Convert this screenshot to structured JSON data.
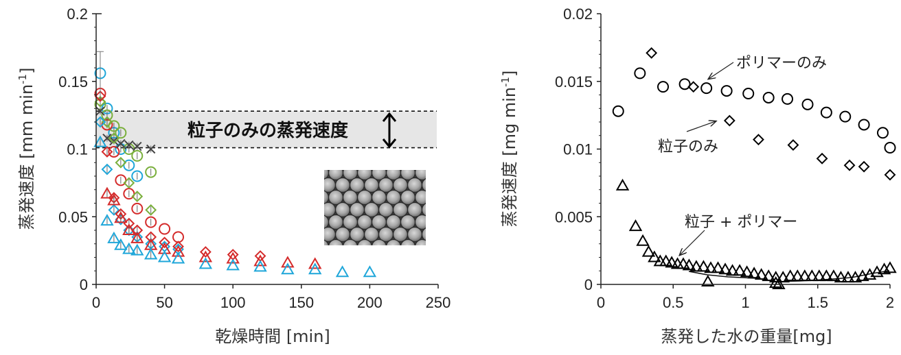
{
  "chart_data": [
    {
      "type": "scatter",
      "xlabel": "乾燥時間 [min]",
      "ylabel": "蒸発速度 [mm min-1]",
      "ylabel_main": "蒸発速度 [mm min",
      "ylabel_sup": "-1",
      "ylabel_end": "]",
      "xlim": [
        0,
        250
      ],
      "ylim": [
        0,
        0.2
      ],
      "x_ticks": [
        "0",
        "50",
        "100",
        "150",
        "200",
        "250"
      ],
      "y_ticks": [
        "0",
        "0.05",
        "0.1",
        "0.15",
        "0.2"
      ],
      "band": {
        "y_low": 0.101,
        "y_high": 0.128,
        "label": "粒子のみの蒸発速度",
        "color": "#e6e6e6"
      },
      "series": [
        {
          "marker": "circle",
          "color": "#1ea6d9",
          "x": [
            3,
            8,
            13,
            18,
            24,
            30
          ],
          "y": [
            0.156,
            0.13,
            0.112,
            0.1,
            0.088,
            0.08
          ]
        },
        {
          "marker": "circle",
          "color": "#7aaf3c",
          "x": [
            3,
            8,
            13,
            18,
            24,
            30,
            40
          ],
          "y": [
            0.133,
            0.125,
            0.117,
            0.112,
            0.1,
            0.095,
            0.083
          ]
        },
        {
          "marker": "circle",
          "color": "#d42a2a",
          "x": [
            3,
            8,
            13,
            18,
            24,
            30,
            40,
            50,
            60
          ],
          "y": [
            0.141,
            0.118,
            0.098,
            0.077,
            0.067,
            0.056,
            0.046,
            0.041,
            0.035
          ]
        },
        {
          "marker": "x",
          "color": "#444444",
          "x": [
            3,
            8,
            13,
            18,
            24,
            30,
            40
          ],
          "y": [
            0.128,
            0.108,
            0.106,
            0.104,
            0.103,
            0.102,
            0.1
          ]
        },
        {
          "marker": "diamond",
          "color": "#7aaf3c",
          "x": [
            3,
            8,
            13,
            18,
            24,
            30,
            40
          ],
          "y": [
            0.135,
            0.12,
            0.108,
            0.09,
            0.075,
            0.065,
            0.055
          ]
        },
        {
          "marker": "diamond",
          "color": "#1ea6d9",
          "x": [
            3,
            8,
            13,
            18,
            24,
            30,
            40,
            50,
            60
          ],
          "y": [
            0.12,
            0.085,
            0.055,
            0.048,
            0.04,
            0.035,
            0.03,
            0.028,
            0.026
          ]
        },
        {
          "marker": "diamond",
          "color": "#d42a2a",
          "x": [
            3,
            8,
            13,
            18,
            24,
            30,
            40,
            50,
            60,
            80,
            100,
            120
          ],
          "y": [
            0.139,
            0.098,
            0.064,
            0.052,
            0.045,
            0.04,
            0.035,
            0.031,
            0.028,
            0.024,
            0.022,
            0.021
          ]
        },
        {
          "marker": "triangle",
          "color": "#d42a2a",
          "x": [
            8,
            13,
            18,
            24,
            30,
            40,
            50,
            60,
            80,
            100,
            120,
            140,
            160
          ],
          "y": [
            0.067,
            0.062,
            0.049,
            0.04,
            0.034,
            0.029,
            0.026,
            0.024,
            0.02,
            0.019,
            0.017,
            0.016,
            0.015
          ]
        },
        {
          "marker": "triangle",
          "color": "#1ea6d9",
          "x": [
            3,
            8,
            13,
            18,
            24,
            30,
            40,
            50,
            60,
            80,
            100,
            120,
            140,
            160,
            180,
            200
          ],
          "y": [
            0.105,
            0.047,
            0.034,
            0.029,
            0.026,
            0.025,
            0.022,
            0.02,
            0.019,
            0.015,
            0.014,
            0.013,
            0.011,
            0.011,
            0.009,
            0.009
          ]
        }
      ]
    },
    {
      "type": "scatter",
      "xlabel": "蒸発した水の重量[mg]",
      "ylabel": "蒸発速度 [mg min-1]",
      "ylabel_main": "蒸発速度 [mg min",
      "ylabel_sup": "-1",
      "ylabel_end": "]",
      "xlim": [
        0,
        2
      ],
      "ylim": [
        0,
        0.02
      ],
      "x_ticks": [
        "0",
        "0.5",
        "1",
        "1.5",
        "2"
      ],
      "y_ticks": [
        "0",
        "0.005",
        "0.01",
        "0.015",
        "0.02"
      ],
      "annotations": {
        "polymer": "ポリマーのみ",
        "particle": "粒子のみ",
        "mixed": "粒子 + ポリマー"
      },
      "series": [
        {
          "marker": "circle",
          "label": "ポリマーのみ",
          "x": [
            0.12,
            0.27,
            0.43,
            0.58,
            0.73,
            0.87,
            1.02,
            1.16,
            1.29,
            1.43,
            1.56,
            1.69,
            1.82,
            1.95,
            2.0
          ],
          "y": [
            0.0128,
            0.0156,
            0.0146,
            0.0148,
            0.0145,
            0.0143,
            0.0141,
            0.0138,
            0.0137,
            0.0133,
            0.0127,
            0.0124,
            0.0118,
            0.0112,
            0.0101
          ]
        },
        {
          "marker": "diamond",
          "label": "粒子のみ",
          "x": [
            0.35,
            0.64,
            0.89,
            1.09,
            1.33,
            1.53,
            1.72,
            1.82,
            2.0
          ],
          "y": [
            0.0171,
            0.0146,
            0.0121,
            0.0107,
            0.0103,
            0.0093,
            0.0088,
            0.0087,
            0.0081
          ]
        },
        {
          "marker": "triangle",
          "label": "粒子 + ポリマー",
          "x": [
            0.15,
            0.24,
            0.29,
            0.33,
            0.37,
            0.41,
            0.45,
            0.49,
            0.53,
            0.57,
            0.61,
            0.66,
            0.71,
            0.76,
            0.81,
            0.86,
            0.91,
            0.96,
            1.01,
            1.06,
            1.11,
            1.16,
            1.21,
            1.26,
            1.31,
            1.36,
            1.41,
            1.46,
            1.51,
            1.56,
            1.61,
            1.66,
            1.71,
            1.76,
            1.81,
            1.86,
            1.91,
            1.96,
            2.0,
            0.74,
            1.21,
            1.23
          ],
          "y": [
            0.0073,
            0.0043,
            0.0032,
            0.0024,
            0.002,
            0.0017,
            0.0017,
            0.0016,
            0.0015,
            0.0015,
            0.0014,
            0.0013,
            0.0013,
            0.0012,
            0.0012,
            0.0011,
            0.001,
            0.001,
            0.0009,
            0.0008,
            0.0007,
            0.0006,
            0.0005,
            0.0005,
            0.0006,
            0.0006,
            0.0006,
            0.0006,
            0.0006,
            0.0006,
            0.0006,
            0.0005,
            0.0005,
            0.0005,
            0.0006,
            0.0007,
            0.0009,
            0.0011,
            0.0012,
            0.0002,
            0.0001,
            0.0
          ]
        }
      ]
    }
  ]
}
